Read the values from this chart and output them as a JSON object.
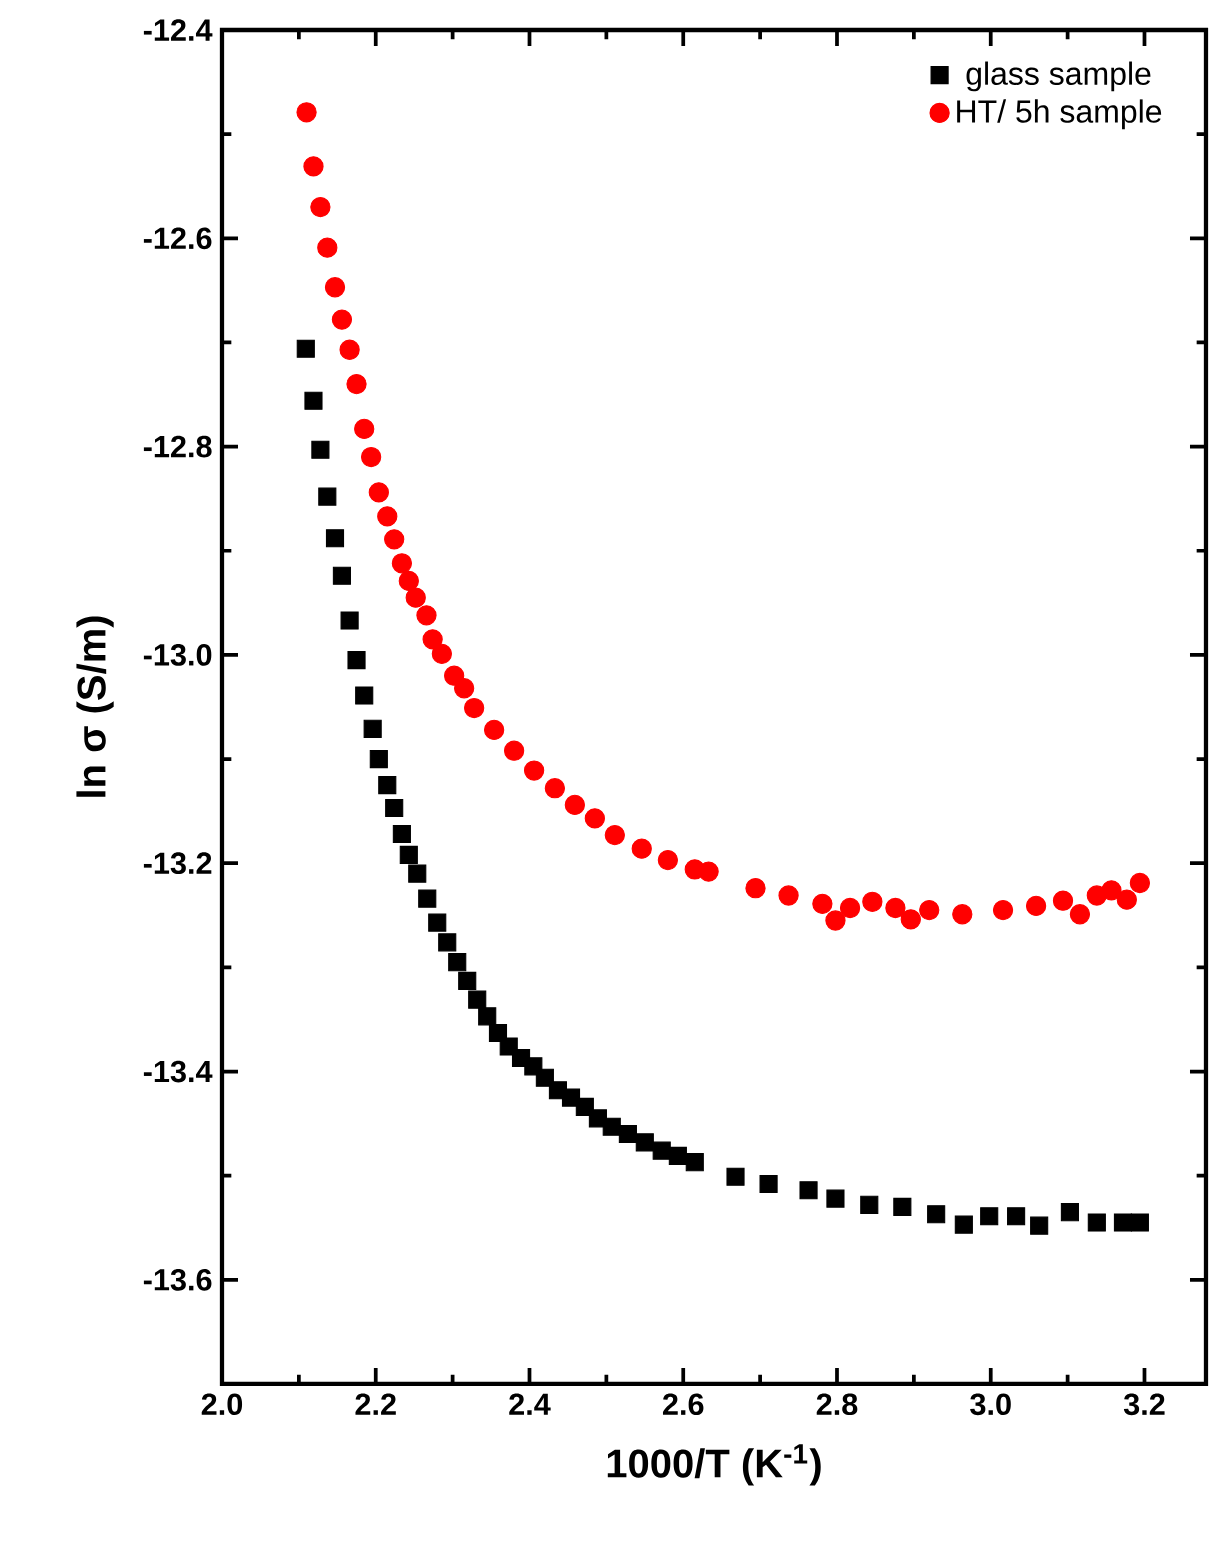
{
  "chart_data": {
    "type": "scatter",
    "xlabel": "1000/T  (K$^{-1}$)",
    "ylabel": "ln σ (S/m)",
    "xlim": [
      2.0,
      3.28
    ],
    "ylim": [
      -13.7,
      -12.4
    ],
    "xticks": [
      {
        "value": 2.0,
        "label": "2.0"
      },
      2.2,
      2.4,
      2.6,
      2.8,
      {
        "value": 3.0,
        "label": "3.0"
      },
      3.2
    ],
    "yticks": [
      -13.6,
      -13.4,
      -13.2,
      {
        "value": -13.0,
        "label": "-13.0"
      },
      -12.8,
      -12.6,
      -12.4
    ],
    "grid": false,
    "legend": "top right",
    "series": [
      {
        "name": "glass sample",
        "color": "#000000",
        "marker": "square",
        "x": [
          2.109,
          2.119,
          2.128,
          2.137,
          2.147,
          2.156,
          2.166,
          2.175,
          2.185,
          2.196,
          2.204,
          2.215,
          2.224,
          2.234,
          2.243,
          2.254,
          2.267,
          2.28,
          2.293,
          2.306,
          2.319,
          2.332,
          2.345,
          2.359,
          2.373,
          2.389,
          2.405,
          2.42,
          2.437,
          2.454,
          2.472,
          2.489,
          2.507,
          2.528,
          2.55,
          2.572,
          2.593,
          2.615,
          2.668,
          2.711,
          2.763,
          2.798,
          2.842,
          2.885,
          2.929,
          2.965,
          2.998,
          3.033,
          3.063,
          3.103,
          3.138,
          3.172,
          3.194
        ],
        "values": [
          -12.706,
          -12.756,
          -12.803,
          -12.848,
          -12.888,
          -12.924,
          -12.967,
          -13.005,
          -13.039,
          -13.071,
          -13.1,
          -13.125,
          -13.147,
          -13.172,
          -13.192,
          -13.21,
          -13.234,
          -13.257,
          -13.276,
          -13.295,
          -13.313,
          -13.331,
          -13.347,
          -13.363,
          -13.376,
          -13.387,
          -13.395,
          -13.406,
          -13.418,
          -13.425,
          -13.434,
          -13.445,
          -13.453,
          -13.46,
          -13.468,
          -13.476,
          -13.481,
          -13.487,
          -13.501,
          -13.508,
          -13.514,
          -13.522,
          -13.528,
          -13.53,
          -13.537,
          -13.547,
          -13.539,
          -13.539,
          -13.548,
          -13.535,
          -13.545,
          -13.545,
          -13.545
        ]
      },
      {
        "name": "HT/ 5h sample",
        "color": "#ff0000",
        "marker": "circle",
        "x": [
          2.11,
          2.119,
          2.128,
          2.137,
          2.147,
          2.156,
          2.166,
          2.175,
          2.185,
          2.194,
          2.204,
          2.215,
          2.224,
          2.234,
          2.243,
          2.252,
          2.266,
          2.274,
          2.286,
          2.302,
          2.315,
          2.328,
          2.354,
          2.38,
          2.406,
          2.433,
          2.459,
          2.485,
          2.511,
          2.546,
          2.58,
          2.615,
          2.633,
          2.694,
          2.737,
          2.781,
          2.798,
          2.817,
          2.846,
          2.876,
          2.896,
          2.92,
          2.963,
          3.016,
          3.059,
          3.094,
          3.116,
          3.138,
          3.157,
          3.177,
          3.194
        ],
        "values": [
          -12.479,
          -12.531,
          -12.57,
          -12.609,
          -12.647,
          -12.678,
          -12.707,
          -12.74,
          -12.783,
          -12.81,
          -12.844,
          -12.867,
          -12.889,
          -12.912,
          -12.929,
          -12.945,
          -12.962,
          -12.985,
          -12.999,
          -13.02,
          -13.032,
          -13.051,
          -13.072,
          -13.092,
          -13.111,
          -13.128,
          -13.144,
          -13.157,
          -13.173,
          -13.186,
          -13.197,
          -13.206,
          -13.208,
          -13.224,
          -13.231,
          -13.239,
          -13.255,
          -13.243,
          -13.237,
          -13.243,
          -13.254,
          -13.245,
          -13.249,
          -13.245,
          -13.241,
          -13.236,
          -13.249,
          -13.231,
          -13.226,
          -13.235,
          -13.219
        ]
      }
    ]
  }
}
